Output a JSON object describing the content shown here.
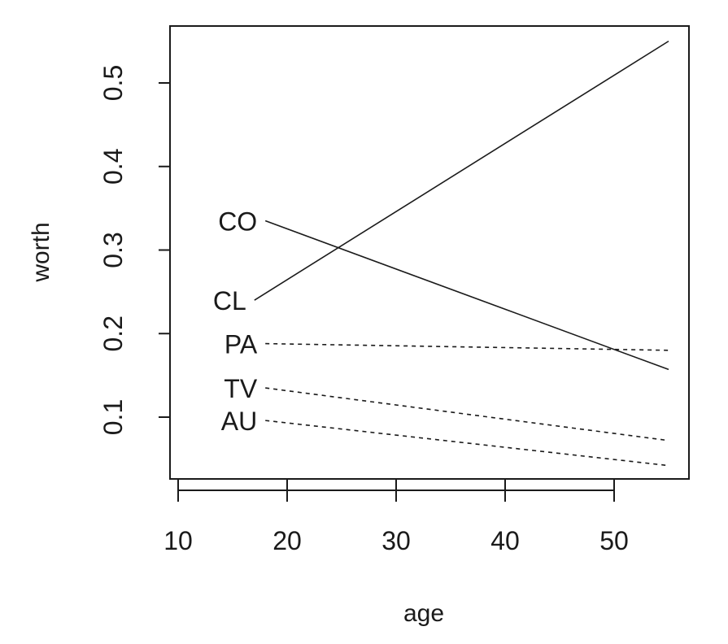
{
  "chart_data": {
    "type": "line",
    "title": "",
    "xlabel": "age",
    "ylabel": "worth",
    "xlim": [
      10,
      55
    ],
    "ylim": [
      0.02,
      0.56
    ],
    "xticks": [
      10,
      20,
      30,
      40,
      50
    ],
    "xtick_labels": [
      "10",
      "20",
      "30",
      "40",
      "50"
    ],
    "yticks": [
      0.1,
      0.2,
      0.3,
      0.4,
      0.5
    ],
    "ytick_labels": [
      "0.1",
      "0.2",
      "0.3",
      "0.4",
      "0.5"
    ],
    "grid": false,
    "legend": "none",
    "series": [
      {
        "name": "CO",
        "x": [
          18,
          55
        ],
        "y": [
          0.335,
          0.157
        ],
        "style": "solid"
      },
      {
        "name": "CL",
        "x": [
          17,
          55
        ],
        "y": [
          0.24,
          0.55
        ],
        "style": "solid"
      },
      {
        "name": "PA",
        "x": [
          18,
          55
        ],
        "y": [
          0.188,
          0.18
        ],
        "style": "dashed"
      },
      {
        "name": "TV",
        "x": [
          18,
          55
        ],
        "y": [
          0.135,
          0.072
        ],
        "style": "dashed"
      },
      {
        "name": "AU",
        "x": [
          18,
          55
        ],
        "y": [
          0.096,
          0.042
        ],
        "style": "dashed"
      }
    ],
    "line_color": "#1a1a1a"
  }
}
